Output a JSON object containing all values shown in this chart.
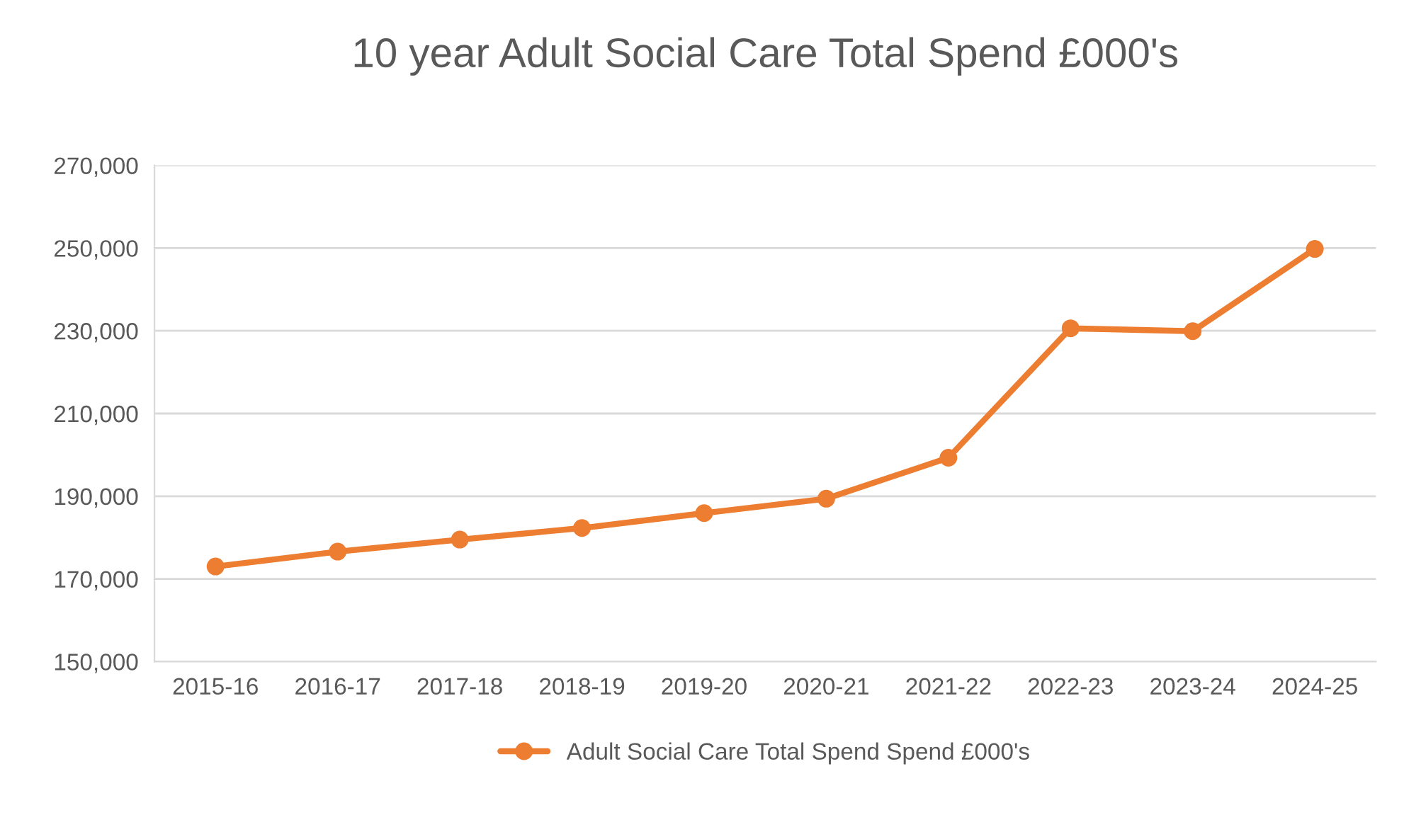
{
  "chart_data": {
    "type": "line",
    "title": "10 year Adult Social Care Total Spend £000's",
    "categories": [
      "2015-16",
      "2016-17",
      "2017-18",
      "2018-19",
      "2019-20",
      "2020-21",
      "2021-22",
      "2022-23",
      "2023-24",
      "2024-25"
    ],
    "series": [
      {
        "name": "Adult Social Care Total Spend Spend £000's",
        "color": "#ed7d31",
        "values": [
          173000,
          176600,
          179500,
          182300,
          185900,
          189400,
          199300,
          230600,
          229900,
          249800
        ]
      }
    ],
    "ylim": [
      150000,
      270000
    ],
    "yticks": [
      {
        "value": 150000,
        "label": "150,000"
      },
      {
        "value": 170000,
        "label": "170,000"
      },
      {
        "value": 190000,
        "label": "190,000"
      },
      {
        "value": 210000,
        "label": "210,000"
      },
      {
        "value": 230000,
        "label": "230,000"
      },
      {
        "value": 250000,
        "label": "250,000"
      },
      {
        "value": 270000,
        "label": "270,000"
      }
    ],
    "grid": "y",
    "legend": "bottom",
    "marker": "circle",
    "line_style": "solid"
  }
}
